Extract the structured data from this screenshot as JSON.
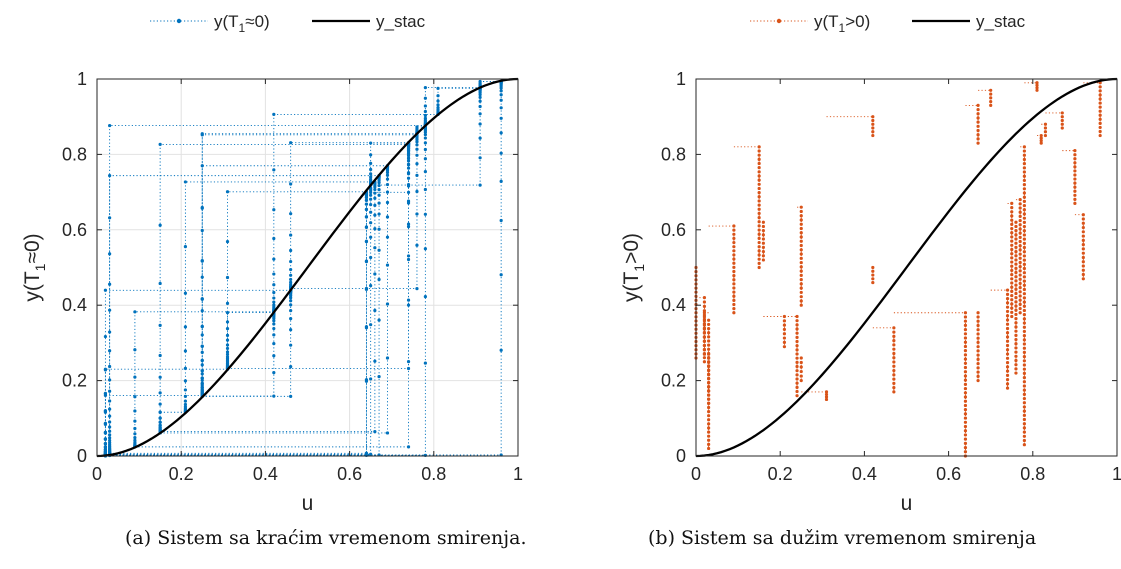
{
  "chart_data": [
    {
      "type": "line",
      "ylabel_main": "y(T",
      "ylabel_sub": "1",
      "ylabel_tail": "≈0)",
      "xlabel": "u",
      "xlim": [
        0,
        1
      ],
      "ylim": [
        0,
        1
      ],
      "xticks": [
        0,
        0.2,
        0.4,
        0.6,
        0.8,
        1
      ],
      "yticks": [
        0,
        0.2,
        0.4,
        0.6,
        0.8,
        1
      ],
      "xtick_labels": [
        "0",
        "0.2",
        "0.4",
        "0.6",
        "0.8",
        "1"
      ],
      "ytick_labels": [
        "0",
        "0.2",
        "0.4",
        "0.6",
        "0.8",
        "1"
      ],
      "grid": true,
      "legend_placement": "top-outside",
      "series": [
        {
          "name": "y(T1≈0)",
          "name_main": "y(T",
          "name_sub": "1",
          "name_tail": "≈0)",
          "color": "#0072BD",
          "style": "dotted-with-markers",
          "u_steps": [
            0.02,
            0.03,
            0.96,
            0.91,
            0.78,
            0.03,
            0.64,
            0.31,
            0.74,
            0.65,
            0.91,
            0.81,
            0.42,
            0.09,
            0.74,
            0.15,
            0.66,
            0.21,
            0.15,
            0.69,
            0.25,
            0.02,
            0.64,
            0.74,
            0.46,
            0.76,
            0.25,
            0.42,
            0.31,
            0.02,
            0.78,
            0.76,
            0.25,
            0.46,
            0.02,
            0.67,
            0.03,
            0.65
          ]
        },
        {
          "name": "y_stac",
          "color": "#000000",
          "style": "solid",
          "function": "u^2(3-2u)"
        }
      ],
      "caption": "(a) Sistem sa kraćim vremenom smirenja."
    },
    {
      "type": "line",
      "ylabel_main": "y(T",
      "ylabel_sub": "1",
      "ylabel_tail": ">0)",
      "xlabel": "u",
      "xlim": [
        0,
        1
      ],
      "ylim": [
        0,
        1
      ],
      "xticks": [
        0,
        0.2,
        0.4,
        0.6,
        0.8,
        1
      ],
      "yticks": [
        0,
        0.2,
        0.4,
        0.6,
        0.8,
        1
      ],
      "xtick_labels": [
        "0",
        "0.2",
        "0.4",
        "0.6",
        "0.8",
        "1"
      ],
      "ytick_labels": [
        "0",
        "0.2",
        "0.4",
        "0.6",
        "0.8",
        "1"
      ],
      "grid": false,
      "legend_placement": "top-outside",
      "series": [
        {
          "name": "y(T1>0)",
          "name_main": "y(T",
          "name_sub": "1",
          "name_tail": ">0)",
          "color": "#D95319",
          "style": "dotted-with-markers",
          "segments": [
            [
              0.0,
              0.26,
              0.5
            ],
            [
              0.02,
              0.42,
              0.27
            ],
            [
              0.03,
              0.27,
              0.02
            ],
            [
              0.02,
              0.38,
              0.25
            ],
            [
              0.03,
              0.36,
              0.14
            ],
            [
              0.09,
              0.61,
              0.38
            ],
            [
              0.15,
              0.82,
              0.5
            ],
            [
              0.16,
              0.62,
              0.52
            ],
            [
              0.21,
              0.37,
              0.29
            ],
            [
              0.24,
              0.37,
              0.16
            ],
            [
              0.25,
              0.66,
              0.4
            ],
            [
              0.25,
              0.26,
              0.2
            ],
            [
              0.31,
              0.17,
              0.15
            ],
            [
              0.42,
              0.9,
              0.85
            ],
            [
              0.42,
              0.5,
              0.46
            ],
            [
              0.47,
              0.34,
              0.17
            ],
            [
              0.64,
              0.38,
              0.0
            ],
            [
              0.67,
              0.93,
              0.83
            ],
            [
              0.67,
              0.38,
              0.2
            ],
            [
              0.7,
              0.97,
              0.93
            ],
            [
              0.74,
              0.44,
              0.18
            ],
            [
              0.75,
              0.67,
              0.37
            ],
            [
              0.76,
              0.62,
              0.22
            ],
            [
              0.77,
              0.68,
              0.38
            ],
            [
              0.78,
              0.82,
              0.03
            ],
            [
              0.81,
              0.99,
              0.97
            ],
            [
              0.82,
              0.85,
              0.83
            ],
            [
              0.83,
              0.88,
              0.85
            ],
            [
              0.87,
              0.91,
              0.87
            ],
            [
              0.9,
              0.81,
              0.67
            ],
            [
              0.92,
              0.64,
              0.47
            ],
            [
              0.96,
              0.99,
              0.85
            ]
          ]
        },
        {
          "name": "y_stac",
          "color": "#000000",
          "style": "solid",
          "function": "u^2(3-2u)"
        }
      ],
      "caption": "(b) Sistem sa dužim vremenom smirenja"
    }
  ]
}
